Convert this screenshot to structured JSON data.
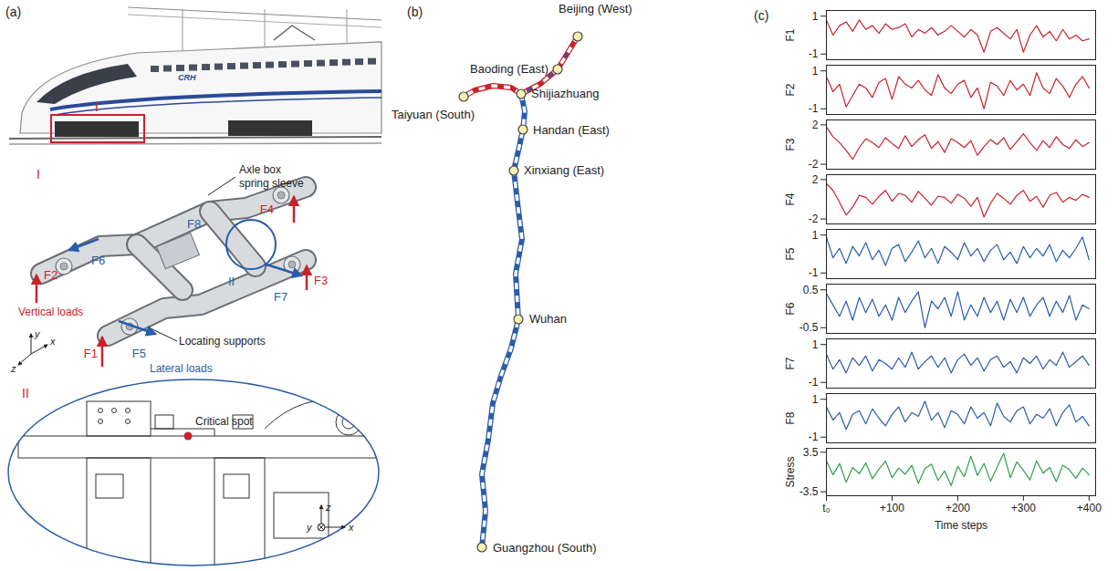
{
  "figure": {
    "panel_a": {
      "letter": "(a)",
      "train_badge": "CRH",
      "marker": "I",
      "inset_I": {
        "label": "I",
        "spring_sleeve": "Axle box spring sleeve",
        "locating_supports": "Locating supports",
        "vertical_loads": "Vertical loads",
        "lateral_loads": "Lateral loads",
        "vertical_forces": [
          "F1",
          "F2",
          "F3",
          "F4"
        ],
        "lateral_forces": [
          "F5",
          "F6",
          "F7",
          "F8"
        ],
        "axes": [
          "y",
          "x",
          "z"
        ],
        "detail_marker": "II"
      },
      "inset_II": {
        "label": "II",
        "critical_spot": "Critical spot",
        "axes": [
          "z",
          "y",
          "x"
        ]
      }
    },
    "panel_b": {
      "letter": "(b)",
      "stations": [
        "Beijing (West)",
        "Baoding (East)",
        "Shijiazhuang",
        "Taiyuan (South)",
        "Handan (East)",
        "Xinxiang (East)",
        "Wuhan",
        "Guangzhou (South)"
      ]
    },
    "panel_c": {
      "letter": "(c)"
    }
  },
  "chart_data": [
    {
      "type": "line",
      "y_label": "F1",
      "color": "#c8232c",
      "tick_labels": "y",
      "grid": false,
      "xlim": [
        0,
        410
      ],
      "ylim": [
        -1.3,
        1.3
      ],
      "yticks": [
        -1,
        1
      ],
      "x": [
        0,
        10,
        20,
        30,
        40,
        50,
        60,
        70,
        80,
        90,
        100,
        110,
        120,
        130,
        140,
        150,
        160,
        170,
        180,
        190,
        200,
        210,
        220,
        230,
        240,
        250,
        260,
        270,
        280,
        290,
        300,
        310,
        320,
        330,
        340,
        350,
        360,
        370,
        380,
        390,
        400
      ],
      "values": [
        0.8,
        0.0,
        0.5,
        0.7,
        0.2,
        0.8,
        0.3,
        0.5,
        0.1,
        0.6,
        0.3,
        0.4,
        0.6,
        -0.1,
        0.3,
        0.1,
        0.4,
        0.0,
        0.2,
        0.5,
        0.2,
        -0.1,
        0.3,
        0.0,
        -0.9,
        0.2,
        0.4,
        0.1,
        -0.2,
        0.3,
        -0.9,
        0.0,
        0.5,
        -0.1,
        0.2,
        -0.3,
        0.3,
        -0.2,
        0.0,
        -0.3,
        -0.2
      ]
    },
    {
      "type": "line",
      "y_label": "F2",
      "color": "#c8232c",
      "tick_labels": "y",
      "grid": false,
      "xlim": [
        0,
        410
      ],
      "ylim": [
        -1.3,
        1.3
      ],
      "yticks": [
        -1,
        1
      ],
      "x": [
        0,
        10,
        20,
        30,
        40,
        50,
        60,
        70,
        80,
        90,
        100,
        110,
        120,
        130,
        140,
        150,
        160,
        170,
        180,
        190,
        200,
        210,
        220,
        230,
        240,
        250,
        260,
        270,
        280,
        290,
        300,
        310,
        320,
        330,
        340,
        350,
        360,
        370,
        380,
        390,
        400
      ],
      "values": [
        0.7,
        -0.1,
        0.3,
        -0.9,
        -0.3,
        0.3,
        0.1,
        -0.4,
        0.4,
        0.6,
        -0.5,
        0.7,
        0.3,
        0.1,
        0.5,
        0.0,
        -0.3,
        0.8,
        0.1,
        -0.2,
        0.3,
        0.5,
        -0.4,
        0.1,
        -1.0,
        0.4,
        0.2,
        -0.3,
        0.5,
        0.0,
        0.3,
        -0.3,
        0.9,
        0.1,
        -0.2,
        0.6,
        0.2,
        -0.4,
        0.3,
        0.7,
        0.1
      ]
    },
    {
      "type": "line",
      "y_label": "F3",
      "color": "#c8232c",
      "tick_labels": "y",
      "grid": false,
      "xlim": [
        0,
        410
      ],
      "ylim": [
        -2.5,
        2.5
      ],
      "yticks": [
        -2,
        2
      ],
      "x": [
        0,
        10,
        20,
        30,
        40,
        50,
        60,
        70,
        80,
        90,
        100,
        110,
        120,
        130,
        140,
        150,
        160,
        170,
        180,
        190,
        200,
        210,
        220,
        230,
        240,
        250,
        260,
        270,
        280,
        290,
        300,
        310,
        320,
        330,
        340,
        350,
        360,
        370,
        380,
        390,
        400
      ],
      "values": [
        1.8,
        0.8,
        0.2,
        -0.6,
        -1.5,
        -0.3,
        0.6,
        0.2,
        -0.3,
        0.7,
        0.1,
        -0.4,
        0.9,
        -0.2,
        0.5,
        1.0,
        -0.4,
        0.3,
        -0.8,
        0.6,
        0.2,
        -0.3,
        0.4,
        -1.1,
        -0.2,
        0.5,
        0.0,
        0.7,
        -0.5,
        0.3,
        1.1,
        0.2,
        -0.6,
        0.4,
        -0.3,
        0.8,
        0.0,
        -0.4,
        0.5,
        -0.2,
        0.2
      ]
    },
    {
      "type": "line",
      "y_label": "F4",
      "color": "#c8232c",
      "tick_labels": "y",
      "grid": false,
      "xlim": [
        0,
        410
      ],
      "ylim": [
        -2.5,
        2.5
      ],
      "yticks": [
        -2,
        2
      ],
      "x": [
        0,
        10,
        20,
        30,
        40,
        50,
        60,
        70,
        80,
        90,
        100,
        110,
        120,
        130,
        140,
        150,
        160,
        170,
        180,
        190,
        200,
        210,
        220,
        230,
        240,
        250,
        260,
        270,
        280,
        290,
        300,
        310,
        320,
        330,
        340,
        350,
        360,
        370,
        380,
        390,
        400
      ],
      "values": [
        1.6,
        0.9,
        -0.3,
        -1.6,
        -0.8,
        0.4,
        0.2,
        -0.5,
        0.3,
        0.9,
        -0.2,
        0.6,
        0.4,
        -0.3,
        0.8,
        0.1,
        -0.6,
        0.3,
        0.2,
        -0.4,
        0.5,
        0.1,
        -0.7,
        0.2,
        -1.8,
        -0.4,
        0.6,
        0.1,
        -0.5,
        0.4,
        0.9,
        -0.2,
        0.3,
        -0.8,
        0.4,
        0.7,
        -0.3,
        0.2,
        -0.1,
        0.5,
        0.2
      ]
    },
    {
      "type": "line",
      "y_label": "F5",
      "color": "#2a5caa",
      "tick_labels": "y",
      "grid": false,
      "xlim": [
        0,
        410
      ],
      "ylim": [
        -1.3,
        1.3
      ],
      "yticks": [
        -1,
        1
      ],
      "x": [
        0,
        10,
        20,
        30,
        40,
        50,
        60,
        70,
        80,
        90,
        100,
        110,
        120,
        130,
        140,
        150,
        160,
        170,
        180,
        190,
        200,
        210,
        220,
        230,
        240,
        250,
        260,
        270,
        280,
        290,
        300,
        310,
        320,
        330,
        340,
        350,
        360,
        370,
        380,
        390,
        400
      ],
      "values": [
        0.9,
        -0.2,
        0.3,
        -0.5,
        0.4,
        -0.1,
        0.6,
        -0.3,
        0.2,
        -0.6,
        0.3,
        0.5,
        -0.4,
        0.1,
        0.7,
        -0.2,
        0.3,
        -0.5,
        0.4,
        0.1,
        -0.3,
        0.6,
        -0.1,
        0.3,
        -0.4,
        0.2,
        0.5,
        -0.3,
        0.1,
        -0.5,
        0.4,
        -0.2,
        0.3,
        -0.1,
        0.5,
        -0.4,
        0.2,
        -0.2,
        0.3,
        0.9,
        -0.3
      ]
    },
    {
      "type": "line",
      "y_label": "F6",
      "color": "#2a5caa",
      "tick_labels": "y",
      "grid": false,
      "xlim": [
        0,
        410
      ],
      "ylim": [
        -0.65,
        0.65
      ],
      "yticks": [
        -0.5,
        0.5
      ],
      "x": [
        0,
        10,
        20,
        30,
        40,
        50,
        60,
        70,
        80,
        90,
        100,
        110,
        120,
        130,
        140,
        150,
        160,
        170,
        180,
        190,
        200,
        210,
        220,
        230,
        240,
        250,
        260,
        270,
        280,
        290,
        300,
        310,
        320,
        330,
        340,
        350,
        360,
        370,
        380,
        390,
        400
      ],
      "values": [
        0.4,
        0.1,
        -0.2,
        0.2,
        -0.3,
        0.3,
        -0.1,
        0.25,
        -0.2,
        0.1,
        -0.3,
        0.3,
        -0.1,
        0.2,
        0.45,
        -0.5,
        0.2,
        0.0,
        0.3,
        -0.2,
        0.45,
        -0.3,
        0.1,
        -0.2,
        0.3,
        -0.1,
        0.2,
        -0.3,
        0.25,
        -0.1,
        0.3,
        -0.2,
        0.1,
        0.3,
        -0.2,
        0.2,
        -0.1,
        0.35,
        -0.3,
        0.1,
        0.0
      ]
    },
    {
      "type": "line",
      "y_label": "F7",
      "color": "#2a5caa",
      "tick_labels": "y",
      "grid": false,
      "xlim": [
        0,
        410
      ],
      "ylim": [
        -1.3,
        1.3
      ],
      "yticks": [
        -1,
        1
      ],
      "x": [
        0,
        10,
        20,
        30,
        40,
        50,
        60,
        70,
        80,
        90,
        100,
        110,
        120,
        130,
        140,
        150,
        160,
        170,
        180,
        190,
        200,
        210,
        220,
        230,
        240,
        250,
        260,
        270,
        280,
        290,
        300,
        310,
        320,
        330,
        340,
        350,
        360,
        370,
        380,
        390,
        400
      ],
      "values": [
        0.5,
        -0.3,
        0.2,
        -0.5,
        0.3,
        -0.1,
        0.4,
        -0.4,
        0.2,
        0.0,
        -0.3,
        0.3,
        -0.2,
        0.6,
        -0.3,
        0.1,
        0.4,
        -0.2,
        0.3,
        -0.5,
        0.2,
        0.5,
        -0.1,
        0.3,
        -0.4,
        0.2,
        0.4,
        -0.2,
        0.1,
        -0.5,
        0.3,
        0.0,
        0.4,
        -0.3,
        0.2,
        -0.1,
        0.6,
        -0.2,
        0.1,
        0.4,
        -0.1
      ]
    },
    {
      "type": "line",
      "y_label": "F8",
      "color": "#2a5caa",
      "tick_labels": "y",
      "grid": false,
      "xlim": [
        0,
        410
      ],
      "ylim": [
        -1.3,
        1.3
      ],
      "yticks": [
        -1,
        1
      ],
      "x": [
        0,
        10,
        20,
        30,
        40,
        50,
        60,
        70,
        80,
        90,
        100,
        110,
        120,
        130,
        140,
        150,
        160,
        170,
        180,
        190,
        200,
        210,
        220,
        230,
        240,
        250,
        260,
        270,
        280,
        290,
        300,
        310,
        320,
        330,
        340,
        350,
        360,
        370,
        380,
        390,
        400
      ],
      "values": [
        0.6,
        -0.1,
        0.3,
        -0.6,
        0.2,
        0.4,
        -0.3,
        0.5,
        0.0,
        -0.4,
        0.2,
        0.6,
        -0.2,
        0.3,
        0.1,
        0.9,
        -0.1,
        0.3,
        -0.5,
        0.4,
        0.2,
        -0.3,
        0.6,
        0.0,
        0.3,
        -0.4,
        0.8,
        0.1,
        -0.2,
        0.4,
        0.6,
        -0.3,
        0.2,
        0.0,
        0.5,
        -0.4,
        0.3,
        0.7,
        -0.2,
        0.1,
        -0.4
      ]
    },
    {
      "type": "line",
      "y_label": "Stress",
      "x_label": "Time steps",
      "color": "#2e9e4a",
      "grid": false,
      "xlim": [
        0,
        410
      ],
      "ylim": [
        -4.2,
        4.2
      ],
      "yticks": [
        -3.5,
        3.5
      ],
      "xticks": [
        {
          "value": 0,
          "label": "t₀"
        },
        {
          "value": 100,
          "label": "+100"
        },
        {
          "value": 200,
          "label": "+200"
        },
        {
          "value": 300,
          "label": "+300"
        },
        {
          "value": 400,
          "label": "+400"
        }
      ],
      "x": [
        0,
        10,
        20,
        30,
        40,
        50,
        60,
        70,
        80,
        90,
        100,
        110,
        120,
        130,
        140,
        150,
        160,
        170,
        180,
        190,
        200,
        210,
        220,
        230,
        240,
        250,
        260,
        270,
        280,
        290,
        300,
        310,
        320,
        330,
        340,
        350,
        360,
        370,
        380,
        390,
        400
      ],
      "values": [
        2.0,
        -0.5,
        1.5,
        -1.8,
        0.8,
        -0.3,
        1.6,
        -1.2,
        0.5,
        1.9,
        -1.0,
        0.7,
        -0.4,
        1.2,
        -2.0,
        0.6,
        1.4,
        -1.5,
        0.2,
        -2.4,
        1.0,
        -0.8,
        2.8,
        -0.6,
        1.5,
        -1.6,
        0.9,
        3.3,
        -1.0,
        1.8,
        0.3,
        -1.4,
        2.0,
        -0.2,
        0.8,
        -1.7,
        1.2,
        0.4,
        -1.1,
        0.7,
        -0.5
      ]
    }
  ]
}
